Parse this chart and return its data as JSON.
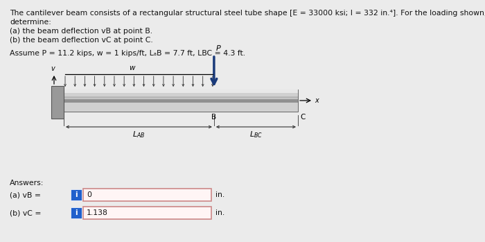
{
  "title_line1": "The cantilever beam consists of a rectangular structural steel tube shape [E = 33000 ksi; I = 332 in.⁴]. For the loading shown,",
  "title_line2": "determine:",
  "title_line3": "(a) the beam deflection vB at point B.",
  "title_line4": "(b) the beam deflection vC at point C.",
  "assume_line": "Assume P = 11.2 kips, w = 1 kips/ft, LₐB = 7.7 ft, LBC = 4.3 ft.",
  "answers_label": "Answers:",
  "answer_a_label": "(a) vB =",
  "answer_b_label": "(b) vC =",
  "answer_a_value": "0",
  "answer_b_value": "1.138",
  "unit": "in.",
  "bg_color": "#ebebeb",
  "beam_color_top": "#d8d8d8",
  "beam_color_mid": "#aaaaaa",
  "beam_color_bot": "#c0c0c0",
  "wall_color": "#999999",
  "arrow_color": "#1a3a7a",
  "distributed_load_color": "#333333",
  "dim_line_color": "#333333",
  "info_box_color": "#2060cc",
  "answer_box_border": "#cc8888",
  "answer_box_fill": "#fff5f5",
  "text_color": "#111111"
}
